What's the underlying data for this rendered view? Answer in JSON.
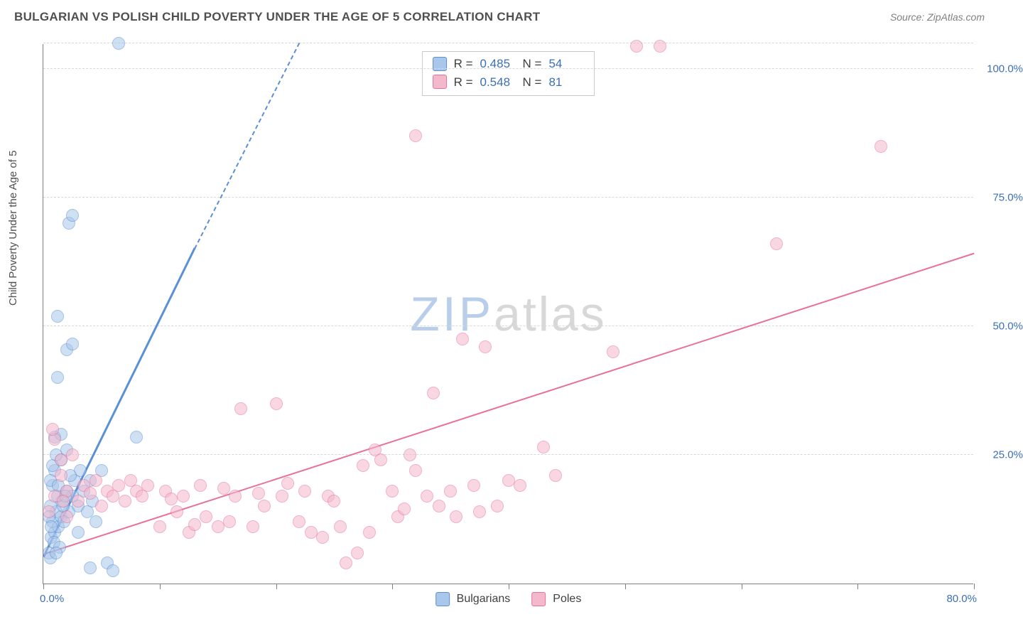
{
  "title": "BULGARIAN VS POLISH CHILD POVERTY UNDER THE AGE OF 5 CORRELATION CHART",
  "source_prefix": "Source: ",
  "source_name": "ZipAtlas.com",
  "y_axis_label": "Child Poverty Under the Age of 5",
  "watermark": {
    "part1": "ZIP",
    "part2": "atlas"
  },
  "chart": {
    "type": "scatter-with-regression",
    "xlim": [
      0,
      80
    ],
    "ylim": [
      0,
      105
    ],
    "x_ticks": [
      0,
      10,
      20,
      30,
      40,
      50,
      60,
      70,
      80
    ],
    "y_gridlines": [
      25,
      50,
      75,
      100,
      105
    ],
    "x_tick_labels": {
      "first": "0.0%",
      "last": "80.0%"
    },
    "y_tick_labels": [
      "25.0%",
      "50.0%",
      "75.0%",
      "100.0%"
    ],
    "background_color": "#ffffff",
    "grid_color": "#d8d8d8",
    "axis_color": "#808080",
    "tick_label_color": "#3b6fb6",
    "point_radius": 9,
    "point_opacity": 0.55,
    "series": [
      {
        "key": "bulgarians",
        "label": "Bulgarians",
        "color_stroke": "#5b8fd6",
        "color_fill": "#a9c7ea",
        "regression": {
          "x1": 0,
          "y1": 5,
          "x2": 13,
          "y2": 65,
          "dashed_extend_to_x": 22,
          "dashed_extend_to_y": 105,
          "width": 2.5
        },
        "R": "0.485",
        "N": "54",
        "points": [
          [
            0.5,
            6
          ],
          [
            0.7,
            9
          ],
          [
            0.8,
            12
          ],
          [
            1,
            10
          ],
          [
            1.1,
            14
          ],
          [
            0.6,
            15
          ],
          [
            1.3,
            11
          ],
          [
            1.5,
            13
          ],
          [
            1.6,
            16
          ],
          [
            1.8,
            12
          ],
          [
            2,
            18
          ],
          [
            2.2,
            14
          ],
          [
            2.5,
            17
          ],
          [
            2.7,
            20
          ],
          [
            3,
            15
          ],
          [
            3.2,
            22
          ],
          [
            3.5,
            18
          ],
          [
            3.8,
            14
          ],
          [
            4,
            20
          ],
          [
            4.2,
            16
          ],
          [
            1,
            22
          ],
          [
            1.5,
            24
          ],
          [
            2,
            26
          ],
          [
            2.3,
            21
          ],
          [
            0.8,
            19
          ],
          [
            1.2,
            17
          ],
          [
            0.9,
            8
          ],
          [
            1.4,
            7
          ],
          [
            0.5,
            13
          ],
          [
            0.7,
            11
          ],
          [
            1,
            28.5
          ],
          [
            1.5,
            29
          ],
          [
            0.6,
            20
          ],
          [
            0.8,
            23
          ],
          [
            1.1,
            25
          ],
          [
            1.3,
            19
          ],
          [
            1.7,
            15
          ],
          [
            1.9,
            17
          ],
          [
            1.2,
            40
          ],
          [
            2,
            45.5
          ],
          [
            2.5,
            46.5
          ],
          [
            1.2,
            52
          ],
          [
            2.2,
            70
          ],
          [
            2.5,
            71.5
          ],
          [
            6.5,
            105
          ],
          [
            4,
            3
          ],
          [
            5.5,
            4
          ],
          [
            6,
            2.5
          ],
          [
            8,
            28.5
          ],
          [
            5,
            22
          ],
          [
            4.5,
            12
          ],
          [
            3,
            10
          ],
          [
            0.6,
            5
          ],
          [
            1.1,
            6
          ]
        ]
      },
      {
        "key": "poles",
        "label": "Poles",
        "color_stroke": "#e77299",
        "color_fill": "#f4b8cd",
        "regression": {
          "x1": 0,
          "y1": 5.5,
          "x2": 80,
          "y2": 64,
          "width": 2.2
        },
        "R": "0.548",
        "N": "81",
        "points": [
          [
            1,
            17
          ],
          [
            1.5,
            21
          ],
          [
            2,
            18
          ],
          [
            2.5,
            25
          ],
          [
            3,
            16
          ],
          [
            3.5,
            19
          ],
          [
            4,
            17.5
          ],
          [
            4.5,
            20
          ],
          [
            5,
            15
          ],
          [
            5.5,
            18
          ],
          [
            6,
            17
          ],
          [
            6.5,
            19
          ],
          [
            7,
            16
          ],
          [
            7.5,
            20
          ],
          [
            8,
            18
          ],
          [
            8.5,
            17
          ],
          [
            9,
            19
          ],
          [
            10,
            11
          ],
          [
            10.5,
            18
          ],
          [
            11,
            16.5
          ],
          [
            11.5,
            14
          ],
          [
            12,
            17
          ],
          [
            12.5,
            10
          ],
          [
            13,
            11.5
          ],
          [
            13.5,
            19
          ],
          [
            14,
            13
          ],
          [
            15,
            11
          ],
          [
            15.5,
            18.5
          ],
          [
            16,
            12
          ],
          [
            16.5,
            17
          ],
          [
            17,
            34
          ],
          [
            18,
            11
          ],
          [
            18.5,
            17.5
          ],
          [
            19,
            15
          ],
          [
            20,
            35
          ],
          [
            20.5,
            17
          ],
          [
            21,
            19.5
          ],
          [
            22,
            12
          ],
          [
            22.5,
            18
          ],
          [
            23,
            10
          ],
          [
            24,
            9
          ],
          [
            24.5,
            17
          ],
          [
            25,
            16
          ],
          [
            25.5,
            11
          ],
          [
            26,
            4
          ],
          [
            27,
            6
          ],
          [
            27.5,
            23
          ],
          [
            28,
            10
          ],
          [
            28.5,
            26
          ],
          [
            29,
            24
          ],
          [
            30,
            18
          ],
          [
            30.5,
            13
          ],
          [
            31,
            14.5
          ],
          [
            31.5,
            25
          ],
          [
            32,
            22
          ],
          [
            33,
            17
          ],
          [
            34,
            15
          ],
          [
            35,
            18
          ],
          [
            35.5,
            13
          ],
          [
            36,
            47.5
          ],
          [
            37,
            19
          ],
          [
            37.5,
            14
          ],
          [
            38,
            46
          ],
          [
            39,
            15
          ],
          [
            40,
            20
          ],
          [
            41,
            19
          ],
          [
            43,
            26.5
          ],
          [
            44,
            21
          ],
          [
            49,
            45
          ],
          [
            32,
            87
          ],
          [
            33.5,
            37
          ],
          [
            51,
            104.5
          ],
          [
            53,
            104.5
          ],
          [
            72,
            85
          ],
          [
            63,
            66
          ],
          [
            1,
            28
          ],
          [
            0.8,
            30
          ],
          [
            1.5,
            24
          ],
          [
            0.5,
            14
          ],
          [
            2,
            13
          ],
          [
            1.7,
            16
          ]
        ]
      }
    ]
  },
  "stats_box": {
    "r_label": "R =",
    "n_label": "N ="
  }
}
